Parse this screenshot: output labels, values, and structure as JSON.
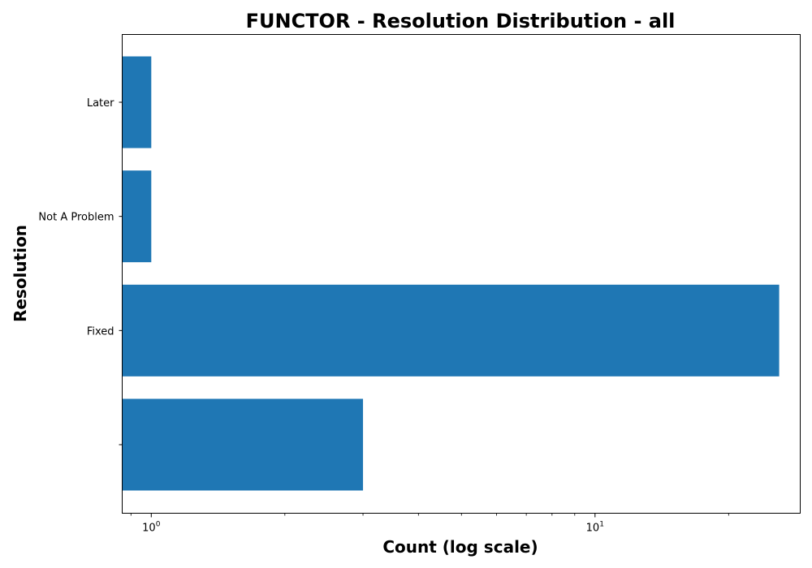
{
  "chart_data": {
    "type": "bar",
    "orientation": "horizontal",
    "title": "FUNCTOR - Resolution Distribution - all",
    "xlabel": "Count (log scale)",
    "ylabel": "Resolution",
    "x_scale": "log",
    "xlim": [
      0.86,
      29
    ],
    "categories": [
      "",
      "Fixed",
      "Not A Problem",
      "Later"
    ],
    "values": [
      3,
      26,
      1,
      1
    ],
    "x_ticks": [
      {
        "base": "10",
        "exp": "0",
        "value": 1
      },
      {
        "base": "10",
        "exp": "1",
        "value": 10
      }
    ],
    "bar_color": "#1f77b4",
    "grid": false,
    "legend": "none"
  }
}
